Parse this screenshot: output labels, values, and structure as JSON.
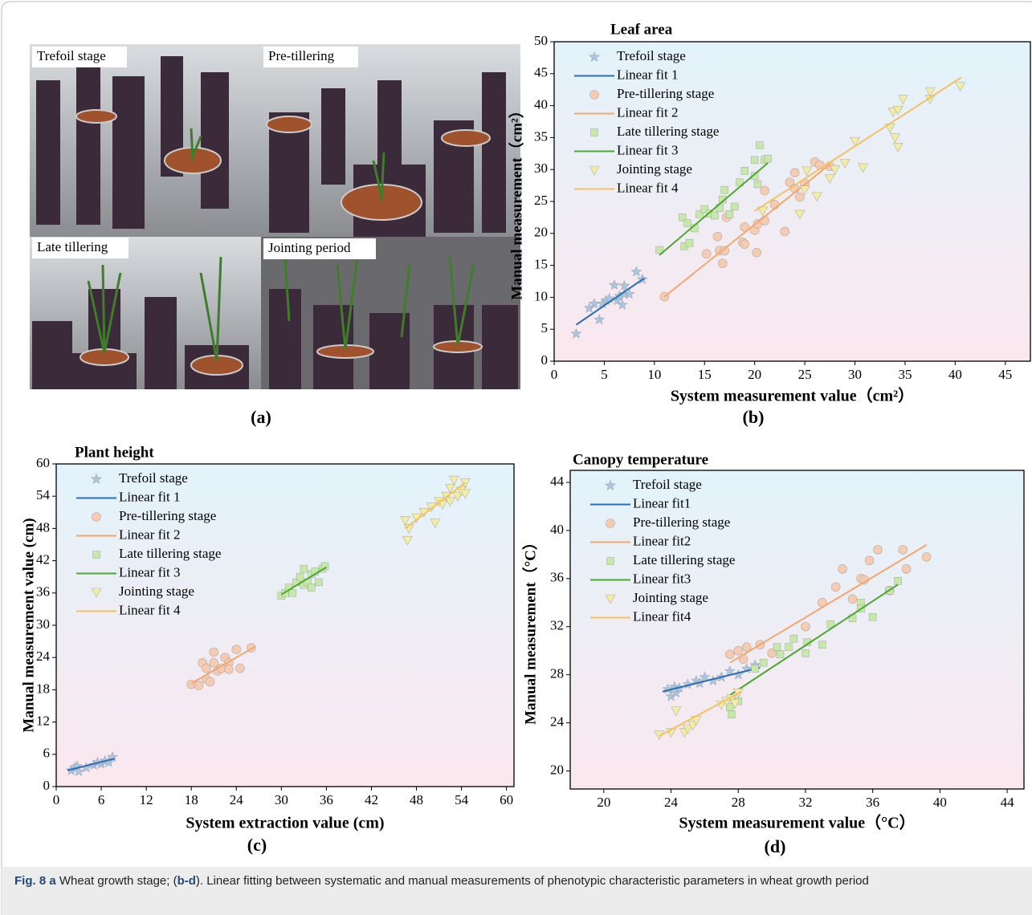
{
  "photo_panel": {
    "labels": [
      "Trefoil stage",
      "Pre-tillering",
      "Late tillering",
      "Jointing period"
    ],
    "panel_label": "(a)"
  },
  "chart_data": [
    {
      "type": "scatter",
      "title": "Leaf area",
      "panel_label": "(b)",
      "x_label": "System measurement value（cm²）",
      "y_label": "Manual measurement（cm²）",
      "xlim": [
        0,
        47.5
      ],
      "ylim": [
        0,
        50
      ],
      "xticks": [
        0,
        5,
        10,
        15,
        20,
        25,
        30,
        35,
        40,
        45
      ],
      "yticks": [
        0,
        5,
        10,
        15,
        20,
        25,
        30,
        35,
        40,
        45,
        50
      ],
      "legend": "upper left",
      "series": [
        {
          "name": "Trefoil stage",
          "marker": "star",
          "color": "#a9c6e2",
          "x": [
            2.2,
            3.5,
            4,
            4.5,
            4.8,
            5.2,
            5.5,
            6,
            6.3,
            6.5,
            6.8,
            7,
            7,
            7.5,
            8.2,
            8.8
          ],
          "values": [
            4.3,
            8.3,
            9,
            6.5,
            9,
            9.5,
            9.8,
            11.9,
            9.5,
            10.2,
            8.8,
            10.5,
            11.8,
            10.5,
            14,
            12.8
          ]
        },
        {
          "name": "Linear fit 1",
          "marker": "line",
          "color": "#2a6db5",
          "x": [
            2.2,
            9
          ],
          "values": [
            5.7,
            13
          ]
        },
        {
          "name": "Pre-tillering stage",
          "marker": "circle",
          "color": "#f5cbb2",
          "x": [
            11,
            15.2,
            16.3,
            16.5,
            16.8,
            17,
            17.2,
            18.8,
            19,
            19,
            20,
            20.2,
            20.3,
            21,
            21,
            22,
            23,
            23.5,
            24,
            24,
            24.5,
            25,
            26,
            26.5,
            27.5
          ],
          "values": [
            10.1,
            16.8,
            19.5,
            17.3,
            15.3,
            17.3,
            22.5,
            18.6,
            21,
            18.3,
            20.5,
            17,
            21.5,
            26.7,
            22,
            24.5,
            20.3,
            28,
            29.5,
            27,
            25.7,
            27.8,
            31.2,
            30.7,
            30.5
          ]
        },
        {
          "name": "Linear fit 2",
          "marker": "line",
          "color": "#f3a76c",
          "x": [
            11,
            27.5
          ],
          "values": [
            10.1,
            30.8
          ]
        },
        {
          "name": "Late tillering stage",
          "marker": "square",
          "color": "#c6e8a9",
          "x": [
            10.5,
            12.8,
            13,
            13.3,
            13.5,
            14,
            14.5,
            15,
            15.5,
            16,
            16.5,
            16.8,
            17,
            17.5,
            18,
            18.5,
            19,
            20,
            20,
            20.3,
            20.5,
            21,
            21.3
          ],
          "values": [
            17.4,
            22.5,
            18,
            21.6,
            18.5,
            20.8,
            23,
            23.8,
            23.1,
            22.8,
            24,
            25.3,
            26.8,
            23,
            24.2,
            28,
            29.8,
            29,
            31.5,
            27.7,
            33.8,
            31.5,
            31.7
          ]
        },
        {
          "name": "Linear fit 3",
          "marker": "line",
          "color": "#4aa832",
          "x": [
            10.5,
            21.3
          ],
          "values": [
            16.6,
            31
          ]
        },
        {
          "name": "Jointing stage",
          "marker": "triangle",
          "color": "#f2eca4",
          "x": [
            20.8,
            24.5,
            25,
            25.2,
            26.2,
            27.5,
            28,
            29,
            30,
            30.8,
            33.5,
            33.8,
            34,
            34.3,
            34.3,
            34.8,
            37.5,
            37.5,
            40.5
          ],
          "values": [
            23.5,
            23,
            26.8,
            29.8,
            25.8,
            28.6,
            30,
            31,
            34.4,
            30.3,
            36.5,
            39,
            35,
            39.3,
            33.5,
            41,
            41,
            42.2,
            43
          ]
        },
        {
          "name": "Linear fit 4",
          "marker": "line",
          "color": "#f5c060",
          "x": [
            20,
            40.6
          ],
          "values": [
            23.5,
            44.4
          ]
        }
      ]
    },
    {
      "type": "scatter",
      "title": "Plant height",
      "panel_label": "(c)",
      "x_label": "System extraction value (cm)",
      "y_label": "Manual measurement value (cm)",
      "xlim": [
        0,
        61
      ],
      "ylim": [
        0,
        60
      ],
      "xticks": [
        0,
        6,
        12,
        18,
        24,
        30,
        36,
        42,
        48,
        54,
        60
      ],
      "yticks": [
        0,
        6,
        12,
        18,
        24,
        30,
        36,
        42,
        48,
        54,
        60
      ],
      "legend": "upper left",
      "series": [
        {
          "name": "Trefoil stage",
          "marker": "star",
          "color": "#a9c6e2",
          "x": [
            2,
            2.5,
            2.8,
            3,
            4,
            5,
            5.5,
            6,
            6.5,
            7,
            7.5
          ],
          "values": [
            3,
            3.5,
            3.8,
            2.8,
            3.5,
            4,
            4.5,
            4.2,
            4.8,
            4.5,
            5.5
          ]
        },
        {
          "name": "Linear fit 1",
          "marker": "line",
          "color": "#2a6db5",
          "x": [
            1.5,
            7.8
          ],
          "values": [
            3,
            5.2
          ]
        },
        {
          "name": "Pre-tillering stage",
          "marker": "circle",
          "color": "#f5cbb2",
          "x": [
            18,
            19,
            19.5,
            20,
            20,
            20.5,
            21,
            21,
            21.5,
            22,
            22.5,
            23,
            23,
            24,
            24.5,
            26
          ],
          "values": [
            19,
            18.8,
            23,
            22,
            20,
            19.5,
            25,
            23,
            21.5,
            22,
            24,
            23,
            21.8,
            25.5,
            22,
            25.8
          ]
        },
        {
          "name": "Linear fit 2",
          "marker": "line",
          "color": "#f3a76c",
          "x": [
            18,
            26.5
          ],
          "values": [
            19.2,
            26
          ]
        },
        {
          "name": "Late tillering stage",
          "marker": "square",
          "color": "#c6e8a9",
          "x": [
            30,
            30.5,
            31,
            31.5,
            32,
            32.5,
            33,
            33,
            33.5,
            34,
            34,
            34.5,
            35,
            35.5,
            35.8
          ],
          "values": [
            35.5,
            36,
            37,
            36,
            38,
            39,
            40.5,
            37.5,
            38,
            39.5,
            37,
            40,
            38,
            40.5,
            41
          ]
        },
        {
          "name": "Linear fit 3",
          "marker": "line",
          "color": "#4aa832",
          "x": [
            30,
            36
          ],
          "values": [
            35.7,
            40.8
          ]
        },
        {
          "name": "Jointing stage",
          "marker": "triangle",
          "color": "#f2eca4",
          "x": [
            46.5,
            46.8,
            47,
            48,
            49,
            50,
            50.5,
            51,
            51.5,
            52,
            52.5,
            52.5,
            53,
            53.5,
            54,
            54.5,
            54.5
          ],
          "values": [
            49.5,
            45.8,
            48,
            50,
            51,
            52,
            49,
            53,
            52.5,
            54,
            55.5,
            53,
            57,
            54,
            55,
            56.5,
            54.5
          ]
        },
        {
          "name": "Linear fit 4",
          "marker": "line",
          "color": "#f5c060",
          "x": [
            46.5,
            54.5
          ],
          "values": [
            48,
            56.5
          ]
        }
      ]
    },
    {
      "type": "scatter",
      "title": "Canopy temperature",
      "panel_label": "(d)",
      "x_label": "System measurement value（°C）",
      "y_label": "Manual measurement（°C）",
      "xlim": [
        18,
        45
      ],
      "ylim": [
        18.5,
        45
      ],
      "xticks": [
        20,
        24,
        28,
        32,
        36,
        40,
        44
      ],
      "yticks": [
        20,
        24,
        28,
        32,
        36,
        40,
        44
      ],
      "legend": "upper left",
      "series": [
        {
          "name": "Trefoil stage",
          "marker": "star",
          "color": "#a9c6e2",
          "x": [
            23.8,
            24,
            24.2,
            24.3,
            24.5,
            25,
            25.5,
            25.7,
            26,
            26.5,
            27,
            27.5,
            28,
            28.5,
            29
          ],
          "values": [
            26.8,
            26.2,
            27,
            26.5,
            26.9,
            27.2,
            27.5,
            27.3,
            27.8,
            27.5,
            27.8,
            28.3,
            28,
            28.5,
            28.8
          ]
        },
        {
          "name": "Linear fit1",
          "marker": "line",
          "color": "#2a6db5",
          "x": [
            23.5,
            29.3
          ],
          "values": [
            26.6,
            28.6
          ]
        },
        {
          "name": "Pre-tillering stage",
          "marker": "circle",
          "color": "#f5cbb2",
          "x": [
            27.5,
            28,
            28.3,
            28.5,
            29.3,
            30,
            32,
            33,
            33.8,
            34.2,
            34.8,
            35.3,
            35.5,
            35.8,
            36.3,
            37,
            37.8,
            38,
            39.2
          ],
          "values": [
            29.7,
            30,
            29.3,
            30.3,
            30.5,
            29.8,
            32,
            34,
            35.3,
            36.8,
            34.3,
            36,
            35.9,
            37.5,
            38.4,
            35,
            38.4,
            36.8,
            37.8
          ]
        },
        {
          "name": "Linear fit2",
          "marker": "line",
          "color": "#f3a76c",
          "x": [
            27.5,
            39.2
          ],
          "values": [
            29,
            38.8
          ]
        },
        {
          "name": "Late tillering stage",
          "marker": "square",
          "color": "#c6e8a9",
          "x": [
            27.5,
            27.6,
            28,
            29,
            29.5,
            30.3,
            30.5,
            31,
            31.3,
            32,
            32.1,
            33,
            33.5,
            34.8,
            35.3,
            35.3,
            36,
            37,
            37.5
          ],
          "values": [
            25.3,
            24.7,
            25.8,
            28.5,
            29,
            30.3,
            29.7,
            30.3,
            31,
            29.8,
            30.7,
            30.5,
            32.2,
            32.7,
            34,
            33.5,
            32.8,
            35,
            35.8
          ]
        },
        {
          "name": "Linear fit3",
          "marker": "line",
          "color": "#4aa832",
          "x": [
            27.5,
            37.5
          ],
          "values": [
            26.3,
            35.5
          ]
        },
        {
          "name": "Jointing stage",
          "marker": "triangle",
          "color": "#f2eca4",
          "x": [
            23.3,
            24,
            24.3,
            24.8,
            25,
            25.3,
            25.5,
            27,
            27.3,
            27.6,
            27.8,
            28
          ],
          "values": [
            23,
            23.2,
            25,
            23.2,
            23.5,
            23.8,
            24.2,
            25.5,
            25.8,
            26,
            25.6,
            26.5
          ]
        },
        {
          "name": "Linear fit4",
          "marker": "line",
          "color": "#f5c060",
          "x": [
            23.3,
            28.2
          ],
          "values": [
            22.9,
            26.6
          ]
        }
      ]
    }
  ],
  "caption": {
    "figure": "Fig. 8",
    "panel": "a",
    "text_1": "Wheat growth stage; (",
    "panels": "b-d",
    "text_2": "). Linear fitting between systematic and manual measurements of phenotypic characteristic parameters in wheat growth period"
  }
}
